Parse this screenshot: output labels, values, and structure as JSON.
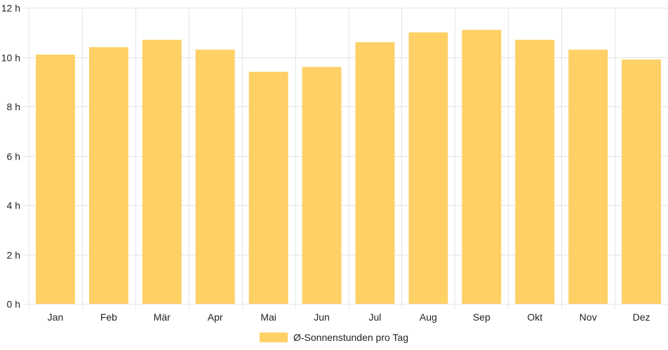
{
  "chart_data": {
    "type": "bar",
    "categories": [
      "Jan",
      "Feb",
      "Mär",
      "Apr",
      "Mai",
      "Jun",
      "Jul",
      "Aug",
      "Sep",
      "Okt",
      "Nov",
      "Dez"
    ],
    "series": [
      {
        "name": "Ø-Sonnenstunden pro Tag",
        "values": [
          10.1,
          10.4,
          10.7,
          10.3,
          9.4,
          9.6,
          10.6,
          11.0,
          11.1,
          10.7,
          10.3,
          9.9
        ]
      }
    ],
    "ylim": [
      0,
      12
    ],
    "yticks": [
      0,
      2,
      4,
      6,
      8,
      10,
      12
    ],
    "ytick_unit": "h",
    "grid": true,
    "legend": "bottom-center",
    "bar_color": "#fed065",
    "grid_color": "#e5e5e5"
  }
}
